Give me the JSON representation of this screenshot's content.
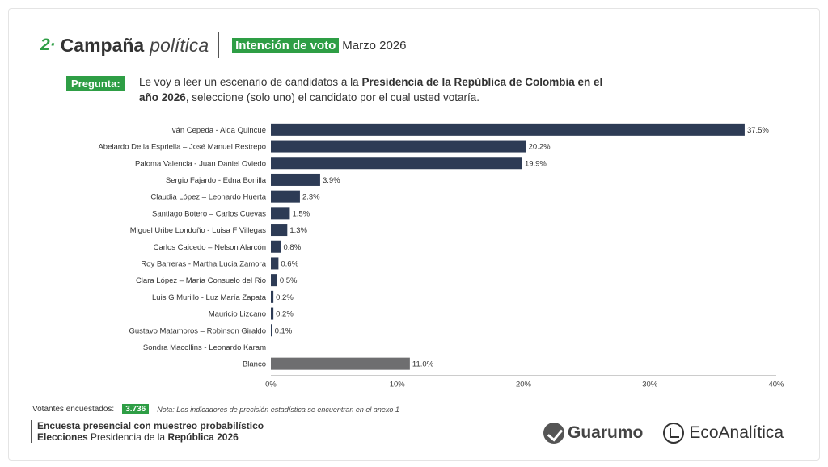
{
  "header": {
    "section_number": "2·",
    "section_title": "Campaña",
    "section_subtitle": "política",
    "tag": "Intención de voto",
    "date": "Marzo  2026"
  },
  "question": {
    "tag": "Pregunta:",
    "text_pre": "Le voy a leer un escenario de candidatos a la ",
    "text_bold1": "Presidencia de la República de Colombia en el año 2026",
    "text_post": ", seleccione (solo uno) el candidato por el cual usted votaría."
  },
  "chart_data": {
    "type": "bar",
    "orientation": "horizontal",
    "categories": [
      "Iván Cepeda - Aida Quincue",
      "Abelardo De la Espriella – José Manuel Restrepo",
      "Paloma Valencia - Juan Daniel Oviedo",
      "Sergio Fajardo - Edna Bonilla",
      "Claudia López – Leonardo Huerta",
      "Santiago Botero – Carlos Cuevas",
      "Miguel Uribe Londoño - Luisa F Villegas",
      "Carlos Caicedo – Nelson Alarcón",
      "Roy Barreras - Martha Lucia Zamora",
      "Clara López – María Consuelo del Rio",
      "Luis G Murillo - Luz María Zapata",
      "Mauricio Lizcano",
      "Gustavo Matamoros – Robinson Giraldo",
      "Sondra Macollins - Leonardo Karam",
      "Blanco"
    ],
    "values": [
      37.5,
      20.2,
      19.9,
      3.9,
      2.3,
      1.5,
      1.3,
      0.8,
      0.6,
      0.5,
      0.2,
      0.2,
      0.1,
      0.0,
      11.0
    ],
    "value_labels": [
      "37.5%",
      "20.2%",
      "19.9%",
      "3.9%",
      "2.3%",
      "1.5%",
      "1.3%",
      "0.8%",
      "0.6%",
      "0.5%",
      "0.2%",
      "0.2%",
      "0.1%",
      "",
      "11.0%"
    ],
    "xlim": [
      0,
      40
    ],
    "xticks": [
      "0%",
      "10%",
      "20%",
      "30%",
      "40%"
    ],
    "colors": {
      "candidate": "#2d3b55",
      "blanco": "#6e6e70"
    },
    "grid": false
  },
  "footer": {
    "voters_label": "Votantes encuestados:",
    "voters_count": "3.736",
    "note": "Nota: Los indicadores de precisión estadística se encuentran en el anexo 1",
    "survey_line1": "Encuesta presencial con muestreo probabilístico",
    "survey_line2_bold": "Elecciones",
    "survey_line2_mid": " Presidencia de la ",
    "survey_line2_end": "República 2026"
  },
  "logos": {
    "guarumo": "Guarumo",
    "ecoanalitica": "EcoAnalítica"
  },
  "accent_color": "#2e9e45"
}
